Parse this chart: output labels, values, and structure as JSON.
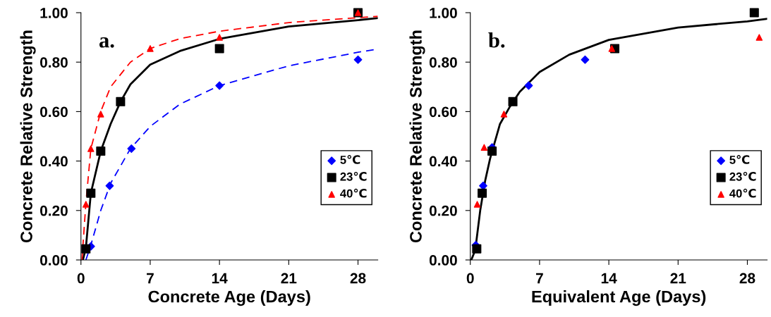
{
  "chart_data": [
    {
      "type": "scatter",
      "xlabel": "Concrete Age (Days)",
      "ylabel": "Concrete Relative Strength",
      "annotations": [
        "a."
      ],
      "xlim": [
        0,
        30
      ],
      "ylim": [
        0,
        1
      ],
      "xticks": [
        0,
        7,
        14,
        21,
        28
      ],
      "yticks": [
        {
          "value": 0,
          "label": "0.00"
        },
        {
          "value": 0.2,
          "label": "0.20"
        },
        {
          "value": 0.4,
          "label": "0.40"
        },
        {
          "value": 0.6,
          "label": "0.60"
        },
        {
          "value": 0.8,
          "label": "0.80"
        },
        {
          "value": 1,
          "label": "1.00"
        }
      ],
      "legend": "lower right",
      "grid": false,
      "series": [
        {
          "name": "5℃",
          "type": "scatter",
          "marker": "diamond",
          "color": "#0000ff",
          "x": [
            1.0,
            2.9,
            5.1,
            14,
            28
          ],
          "values": [
            0.055,
            0.3,
            0.45,
            0.705,
            0.81
          ]
        },
        {
          "name": "23℃",
          "type": "scatter",
          "marker": "square",
          "color": "#000000",
          "x": [
            0.5,
            1.0,
            2.0,
            4.0,
            14,
            28
          ],
          "values": [
            0.045,
            0.27,
            0.44,
            0.64,
            0.855,
            1.0
          ]
        },
        {
          "name": "40℃",
          "type": "scatter",
          "marker": "triangle",
          "color": "#ff0000",
          "x": [
            0.5,
            1.0,
            2.0,
            7,
            14,
            28
          ],
          "values": [
            0.225,
            0.45,
            0.59,
            0.855,
            0.9,
            1.0
          ]
        },
        {
          "type": "line",
          "line_style": "dashed",
          "color": "#0000ff",
          "x": [
            0.5,
            1,
            2,
            3,
            5,
            7,
            10,
            14,
            21,
            28,
            30
          ],
          "values": [
            0.0,
            0.06,
            0.2,
            0.31,
            0.45,
            0.54,
            0.63,
            0.705,
            0.785,
            0.84,
            0.853
          ]
        },
        {
          "type": "line",
          "line_style": "solid",
          "color": "#000000",
          "x": [
            0.2,
            0.5,
            1,
            2,
            3,
            4,
            5,
            7,
            10,
            14,
            21,
            28,
            30
          ],
          "values": [
            0.0,
            0.05,
            0.27,
            0.44,
            0.55,
            0.64,
            0.71,
            0.79,
            0.845,
            0.894,
            0.944,
            0.97,
            0.978
          ]
        },
        {
          "type": "line",
          "line_style": "dashed",
          "color": "#ff0000",
          "x": [
            0.1,
            0.5,
            1,
            2,
            3,
            5,
            7,
            10,
            14,
            21,
            28,
            30
          ],
          "values": [
            0.0,
            0.23,
            0.45,
            0.6,
            0.7,
            0.8,
            0.855,
            0.895,
            0.925,
            0.96,
            0.98,
            0.985
          ]
        }
      ]
    },
    {
      "type": "scatter",
      "xlabel": "Equivalent Age (Days)",
      "ylabel": "Concrete Relative Strength",
      "annotations": [
        "b."
      ],
      "xlim": [
        0,
        30
      ],
      "ylim": [
        0,
        1
      ],
      "xticks": [
        0,
        7,
        14,
        21,
        28
      ],
      "yticks": [
        {
          "value": 0,
          "label": "0.00"
        },
        {
          "value": 0.2,
          "label": "0.20"
        },
        {
          "value": 0.4,
          "label": "0.40"
        },
        {
          "value": 0.6,
          "label": "0.60"
        },
        {
          "value": 0.8,
          "label": "0.80"
        },
        {
          "value": 1,
          "label": "1.00"
        }
      ],
      "legend": "lower right",
      "grid": false,
      "series": [
        {
          "name": "5℃",
          "type": "scatter",
          "marker": "diamond",
          "color": "#0000ff",
          "x": [
            0.55,
            1.3,
            2.2,
            5.9,
            11.6
          ],
          "values": [
            0.06,
            0.3,
            0.455,
            0.705,
            0.81
          ]
        },
        {
          "name": "23℃",
          "type": "scatter",
          "marker": "square",
          "color": "#000000",
          "x": [
            0.65,
            1.2,
            2.2,
            4.3,
            14.6,
            28.7
          ],
          "values": [
            0.045,
            0.27,
            0.44,
            0.64,
            0.855,
            1.0
          ]
        },
        {
          "name": "40℃",
          "type": "scatter",
          "marker": "triangle",
          "color": "#ff0000",
          "x": [
            0.7,
            1.4,
            3.4,
            14.3,
            29.2
          ],
          "values": [
            0.225,
            0.455,
            0.59,
            0.855,
            0.9
          ]
        },
        {
          "type": "line",
          "line_style": "solid",
          "color": "#000000",
          "x": [
            0.1,
            0.5,
            1,
            1.5,
            2,
            3,
            4,
            5,
            6,
            7,
            10,
            14,
            21,
            28,
            30
          ],
          "values": [
            0.0,
            0.04,
            0.2,
            0.32,
            0.41,
            0.55,
            0.62,
            0.68,
            0.72,
            0.76,
            0.83,
            0.89,
            0.94,
            0.965,
            0.975
          ]
        }
      ]
    }
  ]
}
